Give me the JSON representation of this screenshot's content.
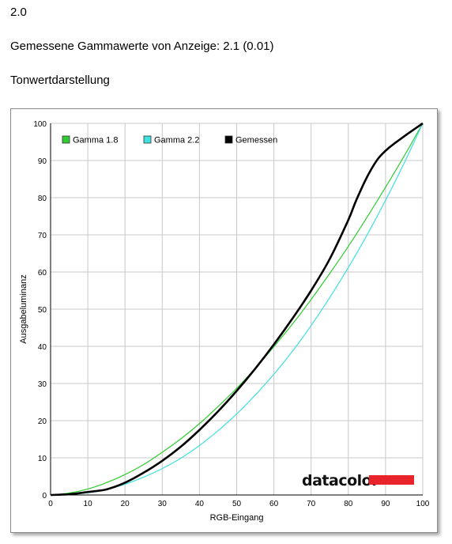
{
  "header": {
    "version": "2.0",
    "measured_gamma": "Gemessene Gammawerte von Anzeige: 2.1 (0.01)",
    "section_title": "Tonwertdarstellung"
  },
  "brand": {
    "logo_text": "datacolor",
    "logo_bar_color": "#e8232a"
  },
  "chart_data": {
    "type": "line",
    "title": "",
    "xlabel": "RGB-Eingang",
    "ylabel": "Ausgabeluminanz",
    "xlim": [
      0,
      100
    ],
    "ylim": [
      0,
      100
    ],
    "xticks": [
      0,
      10,
      20,
      30,
      40,
      50,
      60,
      70,
      80,
      90,
      100
    ],
    "yticks": [
      0,
      10,
      20,
      30,
      40,
      50,
      60,
      70,
      80,
      90,
      100
    ],
    "grid": true,
    "legend_position": "top-left",
    "series": [
      {
        "name": "Gamma 1.8",
        "color": "#2ecc2e",
        "x": [
          0,
          5,
          10,
          15,
          20,
          25,
          30,
          35,
          40,
          45,
          50,
          55,
          60,
          65,
          70,
          75,
          80,
          85,
          90,
          95,
          100
        ],
        "y": [
          0,
          0.5,
          1.6,
          3.3,
          5.5,
          8.2,
          11.5,
          15.1,
          19.2,
          23.8,
          28.7,
          34.1,
          39.9,
          46.0,
          52.6,
          59.6,
          66.9,
          74.7,
          82.8,
          91.2,
          100
        ]
      },
      {
        "name": "Gamma 2.2",
        "color": "#3fe0e0",
        "x": [
          0,
          5,
          10,
          15,
          20,
          25,
          30,
          35,
          40,
          45,
          50,
          55,
          60,
          65,
          70,
          75,
          80,
          85,
          90,
          95,
          100
        ],
        "y": [
          0,
          0.1,
          0.6,
          1.5,
          2.9,
          4.8,
          7.1,
          9.9,
          13.3,
          17.3,
          21.8,
          26.9,
          32.5,
          38.7,
          45.6,
          53.1,
          61.2,
          69.9,
          79.3,
          89.3,
          100
        ]
      },
      {
        "name": "Gemessen",
        "color": "#000000",
        "x": [
          0,
          5,
          10,
          15,
          20,
          25,
          30,
          35,
          40,
          45,
          50,
          55,
          60,
          65,
          70,
          75,
          80,
          82,
          85,
          88,
          91,
          95,
          100
        ],
        "y": [
          0,
          0.2,
          0.8,
          1.5,
          3.3,
          6.0,
          9.2,
          13.0,
          17.5,
          22.5,
          28.0,
          34.0,
          40.5,
          47.5,
          55.0,
          63.5,
          74.0,
          79.0,
          85.5,
          90.5,
          93.5,
          96.5,
          100
        ]
      }
    ]
  }
}
